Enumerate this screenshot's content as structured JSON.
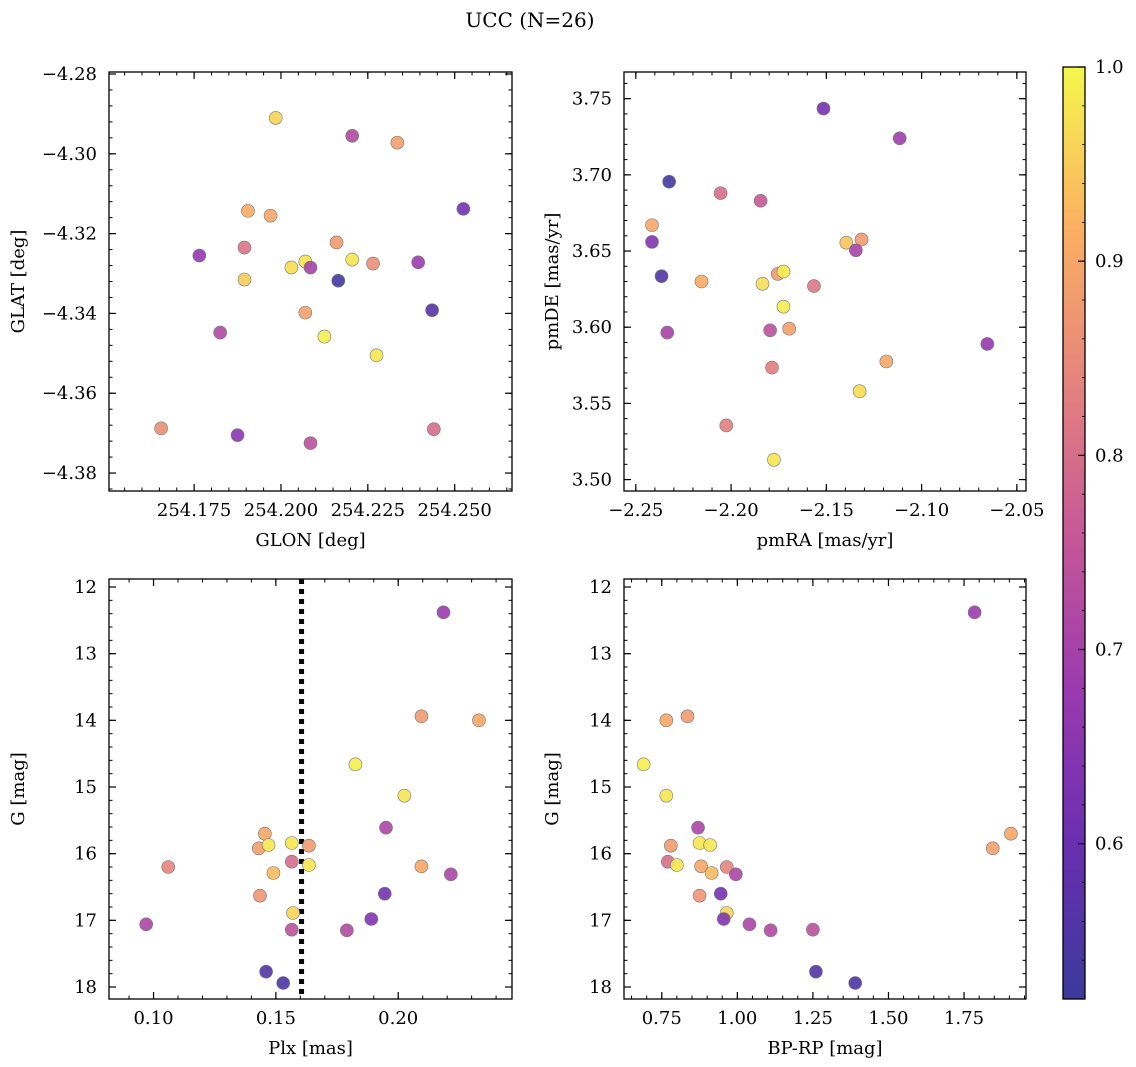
{
  "figure": {
    "title": "UCC (N=26)"
  },
  "colorbar": {
    "range": [
      0.52,
      1.0
    ],
    "ticks": [
      0.6,
      0.7,
      0.8,
      0.9,
      1.0
    ],
    "tick_labels": [
      "0.6",
      "0.7",
      "0.8",
      "0.9",
      "1.0"
    ],
    "colormap": "plasma"
  },
  "chart_data": [
    {
      "type": "scatter",
      "name": "glon-glat",
      "xlabel": "GLON [deg]",
      "ylabel": "GLAT [deg]",
      "xlim": [
        254.1505,
        254.2665
      ],
      "ylim": [
        -4.3845,
        -4.2795
      ],
      "xticks": [
        254.175,
        254.2,
        254.225,
        254.25
      ],
      "xtick_labels": [
        "254.175",
        "254.200",
        "254.225",
        "254.250"
      ],
      "yticks": [
        -4.38,
        -4.36,
        -4.34,
        -4.32,
        -4.3,
        -4.28
      ],
      "ytick_labels": [
        "−4.38",
        "−4.36",
        "−4.34",
        "−4.32",
        "−4.30",
        "−4.28"
      ],
      "y_inverted": false,
      "points": [
        {
          "x": 254.1985,
          "y": -4.291,
          "c": 0.96
        },
        {
          "x": 254.2205,
          "y": -4.2955,
          "c": 0.72
        },
        {
          "x": 254.2335,
          "y": -4.2972,
          "c": 0.89
        },
        {
          "x": 254.2525,
          "y": -4.3138,
          "c": 0.62
        },
        {
          "x": 254.1905,
          "y": -4.3143,
          "c": 0.91
        },
        {
          "x": 254.197,
          "y": -4.3155,
          "c": 0.9
        },
        {
          "x": 254.1765,
          "y": -4.3255,
          "c": 0.67
        },
        {
          "x": 254.1895,
          "y": -4.3235,
          "c": 0.81
        },
        {
          "x": 254.216,
          "y": -4.3222,
          "c": 0.88
        },
        {
          "x": 254.2205,
          "y": -4.3265,
          "c": 0.98
        },
        {
          "x": 254.2265,
          "y": -4.3275,
          "c": 0.86
        },
        {
          "x": 254.207,
          "y": -4.327,
          "c": 0.98
        },
        {
          "x": 254.203,
          "y": -4.3285,
          "c": 0.97
        },
        {
          "x": 254.2085,
          "y": -4.3285,
          "c": 0.7
        },
        {
          "x": 254.2395,
          "y": -4.3272,
          "c": 0.68
        },
        {
          "x": 254.1895,
          "y": -4.3315,
          "c": 0.95
        },
        {
          "x": 254.2165,
          "y": -4.3318,
          "c": 0.54
        },
        {
          "x": 254.207,
          "y": -4.3398,
          "c": 0.89
        },
        {
          "x": 254.2435,
          "y": -4.3392,
          "c": 0.57
        },
        {
          "x": 254.2125,
          "y": -4.3458,
          "c": 0.99
        },
        {
          "x": 254.1825,
          "y": -4.3448,
          "c": 0.72
        },
        {
          "x": 254.2275,
          "y": -4.3505,
          "c": 0.98
        },
        {
          "x": 254.1655,
          "y": -4.3688,
          "c": 0.86
        },
        {
          "x": 254.1875,
          "y": -4.3705,
          "c": 0.65
        },
        {
          "x": 254.2085,
          "y": -4.3725,
          "c": 0.74
        },
        {
          "x": 254.244,
          "y": -4.369,
          "c": 0.8
        }
      ]
    },
    {
      "type": "scatter",
      "name": "pmra-pmde",
      "xlabel": "pmRA [mas/yr]",
      "ylabel": "pmDE [mas/yr]",
      "xlim": [
        -2.2562,
        -2.0452
      ],
      "ylim": [
        3.4925,
        3.7675
      ],
      "xticks": [
        -2.25,
        -2.2,
        -2.15,
        -2.1,
        -2.05
      ],
      "xtick_labels": [
        "−2.25",
        "−2.20",
        "−2.15",
        "−2.10",
        "−2.05"
      ],
      "yticks": [
        3.5,
        3.55,
        3.6,
        3.65,
        3.7,
        3.75
      ],
      "ytick_labels": [
        "3.50",
        "3.55",
        "3.60",
        "3.65",
        "3.70",
        "3.75"
      ],
      "y_inverted": false,
      "points": [
        {
          "x": -2.1515,
          "y": 3.7435,
          "c": 0.62
        },
        {
          "x": -2.1115,
          "y": 3.724,
          "c": 0.69
        },
        {
          "x": -2.2325,
          "y": 3.6955,
          "c": 0.54
        },
        {
          "x": -2.2055,
          "y": 3.688,
          "c": 0.8
        },
        {
          "x": -2.1845,
          "y": 3.683,
          "c": 0.76
        },
        {
          "x": -2.2415,
          "y": 3.667,
          "c": 0.9
        },
        {
          "x": -2.2415,
          "y": 3.656,
          "c": 0.64
        },
        {
          "x": -2.1395,
          "y": 3.6555,
          "c": 0.94
        },
        {
          "x": -2.1315,
          "y": 3.6575,
          "c": 0.88
        },
        {
          "x": -2.1345,
          "y": 3.6505,
          "c": 0.7
        },
        {
          "x": -2.2365,
          "y": 3.6335,
          "c": 0.56
        },
        {
          "x": -2.2155,
          "y": 3.63,
          "c": 0.91
        },
        {
          "x": -2.1755,
          "y": 3.635,
          "c": 0.88
        },
        {
          "x": -2.1725,
          "y": 3.6365,
          "c": 0.99
        },
        {
          "x": -2.1835,
          "y": 3.6285,
          "c": 0.97
        },
        {
          "x": -2.1565,
          "y": 3.627,
          "c": 0.82
        },
        {
          "x": -2.1725,
          "y": 3.6135,
          "c": 0.99
        },
        {
          "x": -2.2335,
          "y": 3.5965,
          "c": 0.7
        },
        {
          "x": -2.1795,
          "y": 3.598,
          "c": 0.74
        },
        {
          "x": -2.1695,
          "y": 3.599,
          "c": 0.89
        },
        {
          "x": -2.0655,
          "y": 3.589,
          "c": 0.67
        },
        {
          "x": -2.1785,
          "y": 3.5735,
          "c": 0.83
        },
        {
          "x": -2.1185,
          "y": 3.5775,
          "c": 0.9
        },
        {
          "x": -2.1325,
          "y": 3.558,
          "c": 0.97
        },
        {
          "x": -2.2025,
          "y": 3.5355,
          "c": 0.83
        },
        {
          "x": -2.1775,
          "y": 3.513,
          "c": 0.98
        }
      ]
    },
    {
      "type": "scatter",
      "name": "plx-g",
      "xlabel": "Plx [mas]",
      "ylabel": "G [mag]",
      "xlim": [
        0.0818,
        0.2465
      ],
      "ylim": [
        18.18,
        11.88
      ],
      "xticks": [
        0.1,
        0.15,
        0.2
      ],
      "xtick_labels": [
        "0.10",
        "0.15",
        "0.20"
      ],
      "yticks": [
        12,
        13,
        14,
        15,
        16,
        17,
        18
      ],
      "ytick_labels": [
        "12",
        "13",
        "14",
        "15",
        "16",
        "17",
        "18"
      ],
      "y_inverted": true,
      "vline": {
        "x": 0.1605,
        "style": "dotted"
      },
      "points": [
        {
          "x": 0.2185,
          "y": 12.38,
          "c": 0.68
        },
        {
          "x": 0.2095,
          "y": 13.94,
          "c": 0.88
        },
        {
          "x": 0.233,
          "y": 14.0,
          "c": 0.9
        },
        {
          "x": 0.1825,
          "y": 14.66,
          "c": 0.99
        },
        {
          "x": 0.2025,
          "y": 15.13,
          "c": 0.98
        },
        {
          "x": 0.195,
          "y": 15.61,
          "c": 0.71
        },
        {
          "x": 0.1455,
          "y": 15.7,
          "c": 0.9
        },
        {
          "x": 0.143,
          "y": 15.92,
          "c": 0.89
        },
        {
          "x": 0.147,
          "y": 15.87,
          "c": 0.98
        },
        {
          "x": 0.1565,
          "y": 15.84,
          "c": 0.98
        },
        {
          "x": 0.1635,
          "y": 15.88,
          "c": 0.88
        },
        {
          "x": 0.1565,
          "y": 16.12,
          "c": 0.8
        },
        {
          "x": 0.1635,
          "y": 16.17,
          "c": 0.98
        },
        {
          "x": 0.106,
          "y": 16.2,
          "c": 0.84
        },
        {
          "x": 0.149,
          "y": 16.29,
          "c": 0.93
        },
        {
          "x": 0.2095,
          "y": 16.19,
          "c": 0.9
        },
        {
          "x": 0.2215,
          "y": 16.31,
          "c": 0.71
        },
        {
          "x": 0.1435,
          "y": 16.63,
          "c": 0.87
        },
        {
          "x": 0.1945,
          "y": 16.6,
          "c": 0.62
        },
        {
          "x": 0.157,
          "y": 16.89,
          "c": 0.96
        },
        {
          "x": 0.189,
          "y": 16.98,
          "c": 0.64
        },
        {
          "x": 0.097,
          "y": 17.06,
          "c": 0.71
        },
        {
          "x": 0.1565,
          "y": 17.14,
          "c": 0.74
        },
        {
          "x": 0.179,
          "y": 17.15,
          "c": 0.72
        },
        {
          "x": 0.146,
          "y": 17.77,
          "c": 0.56
        },
        {
          "x": 0.153,
          "y": 17.94,
          "c": 0.55
        }
      ]
    },
    {
      "type": "scatter",
      "name": "bprp-g",
      "xlabel": "BP-RP [mag]",
      "ylabel": "G [mag]",
      "xlim": [
        0.625,
        1.955
      ],
      "ylim": [
        18.18,
        11.88
      ],
      "xticks": [
        0.75,
        1.0,
        1.25,
        1.5,
        1.75
      ],
      "xtick_labels": [
        "0.75",
        "1.00",
        "1.25",
        "1.50",
        "1.75"
      ],
      "yticks": [
        12,
        13,
        14,
        15,
        16,
        17,
        18
      ],
      "ytick_labels": [
        "12",
        "13",
        "14",
        "15",
        "16",
        "17",
        "18"
      ],
      "y_inverted": true,
      "points": [
        {
          "x": 1.785,
          "y": 12.38,
          "c": 0.68
        },
        {
          "x": 0.835,
          "y": 13.94,
          "c": 0.88
        },
        {
          "x": 0.765,
          "y": 14.0,
          "c": 0.9
        },
        {
          "x": 0.69,
          "y": 14.66,
          "c": 0.99
        },
        {
          "x": 0.765,
          "y": 15.13,
          "c": 0.98
        },
        {
          "x": 0.87,
          "y": 15.61,
          "c": 0.71
        },
        {
          "x": 1.905,
          "y": 15.7,
          "c": 0.9
        },
        {
          "x": 1.845,
          "y": 15.92,
          "c": 0.89
        },
        {
          "x": 0.78,
          "y": 15.88,
          "c": 0.88
        },
        {
          "x": 0.875,
          "y": 15.84,
          "c": 0.98
        },
        {
          "x": 0.91,
          "y": 15.87,
          "c": 0.98
        },
        {
          "x": 0.77,
          "y": 16.12,
          "c": 0.8
        },
        {
          "x": 0.8,
          "y": 16.17,
          "c": 0.98
        },
        {
          "x": 0.88,
          "y": 16.19,
          "c": 0.9
        },
        {
          "x": 0.965,
          "y": 16.2,
          "c": 0.84
        },
        {
          "x": 0.915,
          "y": 16.29,
          "c": 0.93
        },
        {
          "x": 0.995,
          "y": 16.31,
          "c": 0.71
        },
        {
          "x": 0.945,
          "y": 16.6,
          "c": 0.62
        },
        {
          "x": 0.875,
          "y": 16.63,
          "c": 0.87
        },
        {
          "x": 0.965,
          "y": 16.89,
          "c": 0.96
        },
        {
          "x": 0.955,
          "y": 16.98,
          "c": 0.64
        },
        {
          "x": 1.04,
          "y": 17.06,
          "c": 0.71
        },
        {
          "x": 1.11,
          "y": 17.15,
          "c": 0.72
        },
        {
          "x": 1.25,
          "y": 17.14,
          "c": 0.74
        },
        {
          "x": 1.26,
          "y": 17.77,
          "c": 0.56
        },
        {
          "x": 1.39,
          "y": 17.94,
          "c": 0.55
        }
      ]
    }
  ]
}
